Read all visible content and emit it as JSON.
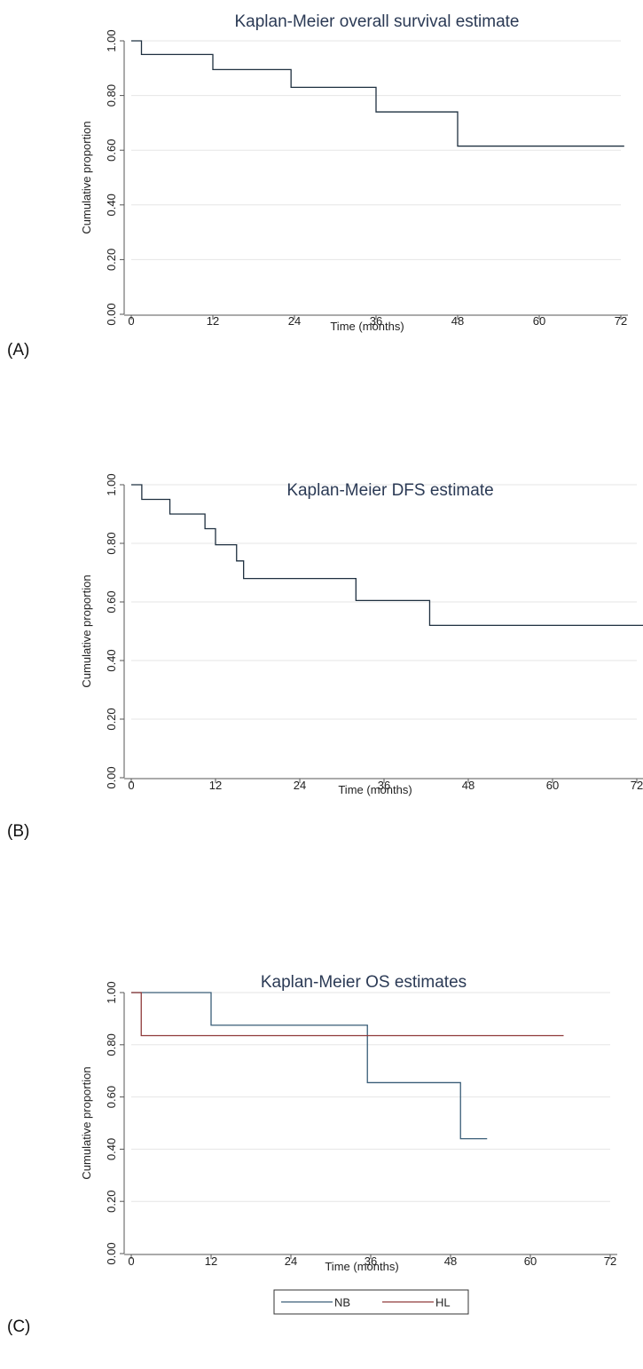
{
  "colors": {
    "grid": "#e6e6e6",
    "axis": "#555555"
  },
  "chart_data": [
    {
      "panel_label": "(A)",
      "type": "line",
      "step": true,
      "title": "Kaplan-Meier overall survival estimate",
      "xlabel": "Time (months)",
      "ylabel": "Cumulative proportion",
      "xlim": [
        0,
        72
      ],
      "ylim": [
        0,
        1
      ],
      "xticks": [
        0,
        12,
        24,
        36,
        48,
        60,
        72
      ],
      "xtick_labels": [
        "0",
        "12",
        "24",
        "36",
        "48",
        "60",
        "72"
      ],
      "yticks": [
        0,
        0.2,
        0.4,
        0.6,
        0.8,
        1.0
      ],
      "ytick_labels": [
        "0.00",
        "0.20",
        "0.40",
        "0.60",
        "0.80",
        "1.00"
      ],
      "grid": true,
      "series": [
        {
          "color": "#1f3040",
          "x": [
            0,
            1.5,
            12,
            23.5,
            36,
            48,
            72.5
          ],
          "y": [
            1.0,
            0.95,
            0.895,
            0.83,
            0.74,
            0.615,
            0.615
          ]
        }
      ]
    },
    {
      "panel_label": "(B)",
      "type": "line",
      "step": true,
      "title": "Kaplan-Meier DFS estimate",
      "xlabel": "Time (months)",
      "ylabel": "Cumulative proportion",
      "xlim": [
        0,
        72
      ],
      "ylim": [
        0,
        1
      ],
      "xticks": [
        0,
        12,
        24,
        36,
        48,
        60,
        72
      ],
      "xtick_labels": [
        "0",
        "12",
        "24",
        "36",
        "48",
        "60",
        "72"
      ],
      "yticks": [
        0,
        0.2,
        0.4,
        0.6,
        0.8,
        1.0
      ],
      "ytick_labels": [
        "0.00",
        "0.20",
        "0.40",
        "0.60",
        "0.80",
        "1.00"
      ],
      "grid": true,
      "series": [
        {
          "color": "#1f3040",
          "x": [
            0,
            1.5,
            5.5,
            10.5,
            12,
            15,
            16,
            32,
            42.5,
            74
          ],
          "y": [
            1.0,
            0.95,
            0.9,
            0.85,
            0.795,
            0.74,
            0.68,
            0.605,
            0.52,
            0.52
          ]
        }
      ]
    },
    {
      "panel_label": "(C)",
      "type": "line",
      "step": true,
      "title": "Kaplan-Meier OS estimates",
      "xlabel": "Time (months)",
      "ylabel": "Cumulative proportion",
      "xlim": [
        0,
        72
      ],
      "ylim": [
        0,
        1
      ],
      "xticks": [
        0,
        12,
        24,
        36,
        48,
        60,
        72
      ],
      "xtick_labels": [
        "0",
        "12",
        "24",
        "36",
        "48",
        "60",
        "72"
      ],
      "yticks": [
        0,
        0.2,
        0.4,
        0.6,
        0.8,
        1.0
      ],
      "ytick_labels": [
        "0.00",
        "0.20",
        "0.40",
        "0.60",
        "0.80",
        "1.00"
      ],
      "grid": true,
      "legend": "bottom",
      "series": [
        {
          "name": "NB",
          "color": "#3a5e78",
          "x": [
            0,
            12,
            35.5,
            49.5,
            53.5
          ],
          "y": [
            1.0,
            0.875,
            0.655,
            0.44,
            0.44
          ]
        },
        {
          "name": "HL",
          "color": "#8f3a3a",
          "x": [
            0,
            1.5,
            65
          ],
          "y": [
            1.0,
            0.835,
            0.835
          ]
        }
      ]
    }
  ]
}
